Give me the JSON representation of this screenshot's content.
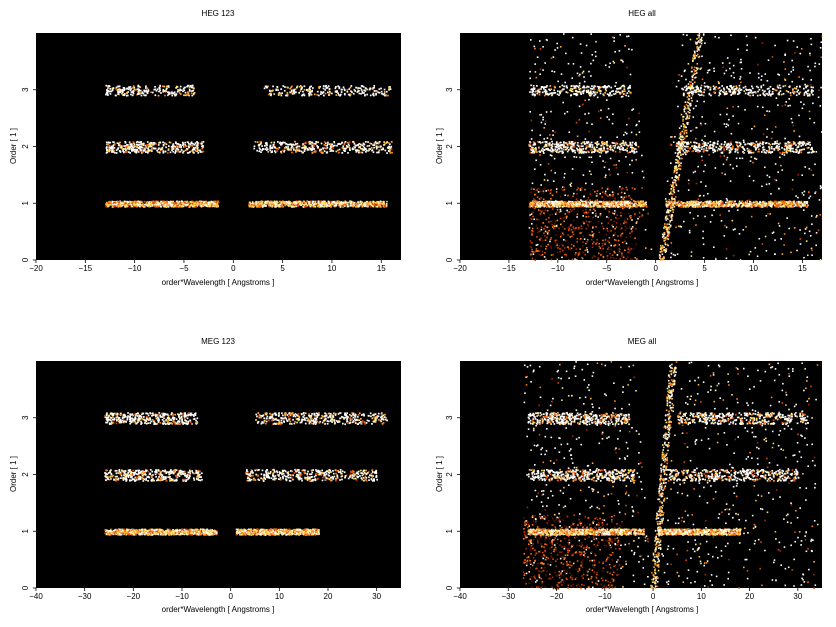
{
  "chart_data": [
    {
      "type": "heatmap",
      "title": "HEG 123",
      "xlabel": "order*Wavelength [ Angstroms ]",
      "ylabel": "Order [ 1 ]",
      "xlim": [
        -20,
        17
      ],
      "ylim": [
        0,
        4
      ],
      "xticks": [
        -20,
        -15,
        -10,
        -5,
        0,
        5,
        10,
        15
      ],
      "yticks": [
        0,
        1,
        2,
        3
      ],
      "colormap": "hot",
      "background": "#000000",
      "bands": [
        {
          "order": 1,
          "ranges": [
            [
              -13,
              -1.5
            ],
            [
              1.5,
              15.5
            ]
          ],
          "intensity": "high"
        },
        {
          "order": 2,
          "ranges": [
            [
              -13,
              -3
            ],
            [
              2,
              16
            ]
          ],
          "intensity": "medium"
        },
        {
          "order": 3,
          "ranges": [
            [
              -13,
              -4
            ],
            [
              3,
              16
            ]
          ],
          "intensity": "low"
        }
      ],
      "background_noise": "none"
    },
    {
      "type": "heatmap",
      "title": "HEG all",
      "xlabel": "order*Wavelength [ Angstroms ]",
      "ylabel": "Order [ 1 ]",
      "xlim": [
        -20,
        17
      ],
      "ylim": [
        0,
        4
      ],
      "xticks": [
        -20,
        -15,
        -10,
        -5,
        0,
        5,
        10,
        15
      ],
      "yticks": [
        0,
        1,
        2,
        3
      ],
      "colormap": "hot",
      "background": "#000000",
      "bands": [
        {
          "order": 1,
          "ranges": [
            [
              -13,
              -1
            ],
            [
              1,
              15.5
            ]
          ],
          "intensity": "high"
        },
        {
          "order": 2,
          "ranges": [
            [
              -13,
              -2
            ],
            [
              2,
              16
            ]
          ],
          "intensity": "medium"
        },
        {
          "order": 3,
          "ranges": [
            [
              -13,
              -2.5
            ],
            [
              2.5,
              16
            ]
          ],
          "intensity": "low"
        }
      ],
      "background_noise": "dense",
      "diagonal_streak": [
        [
          0.5,
          0
        ],
        [
          4.5,
          4
        ]
      ]
    },
    {
      "type": "heatmap",
      "title": "MEG 123",
      "xlabel": "order*Wavelength [ Angstroms ]",
      "ylabel": "Order [ 1 ]",
      "xlim": [
        -40,
        35
      ],
      "ylim": [
        0,
        4
      ],
      "xticks": [
        -40,
        -30,
        -20,
        -10,
        0,
        10,
        20,
        30
      ],
      "yticks": [
        0,
        1,
        2,
        3
      ],
      "colormap": "hot",
      "background": "#000000",
      "bands": [
        {
          "order": 1,
          "ranges": [
            [
              -26,
              -3
            ],
            [
              1,
              18
            ]
          ],
          "intensity": "high"
        },
        {
          "order": 2,
          "ranges": [
            [
              -26,
              -6
            ],
            [
              3,
              30
            ]
          ],
          "intensity": "medium"
        },
        {
          "order": 3,
          "ranges": [
            [
              -26,
              -7
            ],
            [
              5,
              32
            ]
          ],
          "intensity": "medium"
        }
      ],
      "background_noise": "none"
    },
    {
      "type": "heatmap",
      "title": "MEG all",
      "xlabel": "order*Wavelength [ Angstroms ]",
      "ylabel": "Order [ 1 ]",
      "xlim": [
        -40,
        35
      ],
      "ylim": [
        0,
        4
      ],
      "xticks": [
        -40,
        -30,
        -20,
        -10,
        0,
        10,
        20,
        30
      ],
      "yticks": [
        0,
        1,
        2,
        3
      ],
      "colormap": "hot",
      "background": "#000000",
      "bands": [
        {
          "order": 1,
          "ranges": [
            [
              -26,
              -2
            ],
            [
              1,
              18
            ]
          ],
          "intensity": "high"
        },
        {
          "order": 2,
          "ranges": [
            [
              -26,
              -4
            ],
            [
              3,
              30
            ]
          ],
          "intensity": "medium"
        },
        {
          "order": 3,
          "ranges": [
            [
              -26,
              -5
            ],
            [
              5,
              32
            ]
          ],
          "intensity": "medium"
        }
      ],
      "background_noise": "dense",
      "diagonal_streak": [
        [
          0,
          0
        ],
        [
          4,
          4
        ]
      ]
    }
  ]
}
